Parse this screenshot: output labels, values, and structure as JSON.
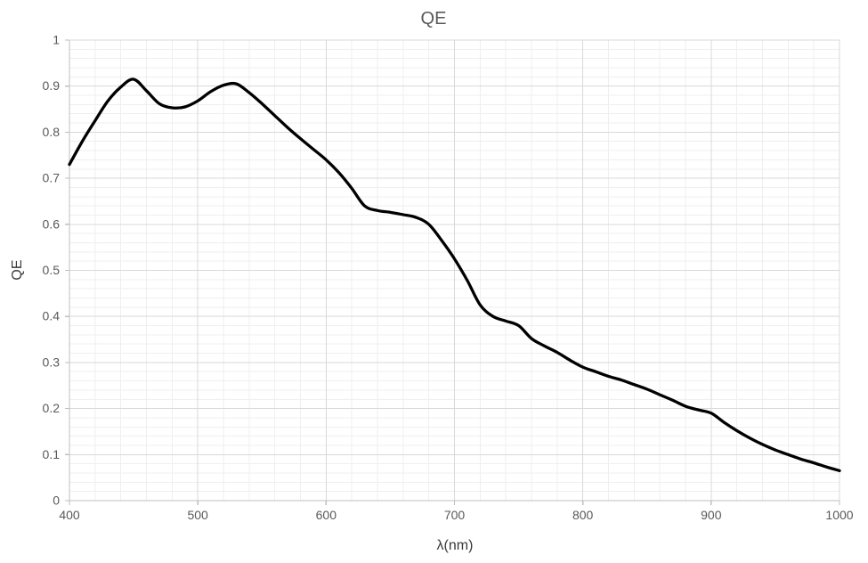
{
  "chart_data": {
    "type": "line",
    "title": "QE",
    "xlabel": "λ(nm)",
    "ylabel": "QE",
    "series_name": "QE",
    "legend": "none",
    "grid": "major+minor",
    "xlim": [
      400,
      1000
    ],
    "ylim": [
      0,
      1
    ],
    "x_ticks": [
      400,
      500,
      600,
      700,
      800,
      900,
      1000
    ],
    "y_ticks": [
      0,
      0.1,
      0.2,
      0.3,
      0.4,
      0.5,
      0.6,
      0.7,
      0.8,
      0.9,
      1
    ],
    "x_minor_step": 20,
    "y_minor_step": 0.02,
    "x": [
      400,
      410,
      420,
      430,
      440,
      450,
      460,
      470,
      480,
      490,
      500,
      510,
      520,
      530,
      540,
      550,
      560,
      570,
      580,
      590,
      600,
      610,
      620,
      630,
      640,
      650,
      660,
      670,
      680,
      690,
      700,
      710,
      720,
      730,
      740,
      750,
      760,
      770,
      780,
      790,
      800,
      810,
      820,
      830,
      840,
      850,
      860,
      870,
      880,
      890,
      900,
      910,
      920,
      930,
      940,
      950,
      960,
      970,
      980,
      990,
      1000
    ],
    "values": [
      0.73,
      0.78,
      0.825,
      0.868,
      0.898,
      0.915,
      0.89,
      0.862,
      0.853,
      0.855,
      0.868,
      0.888,
      0.902,
      0.905,
      0.886,
      0.862,
      0.836,
      0.81,
      0.786,
      0.763,
      0.74,
      0.712,
      0.678,
      0.64,
      0.63,
      0.626,
      0.621,
      0.615,
      0.6,
      0.565,
      0.525,
      0.478,
      0.425,
      0.4,
      0.39,
      0.38,
      0.352,
      0.336,
      0.322,
      0.305,
      0.29,
      0.28,
      0.27,
      0.262,
      0.252,
      0.242,
      0.23,
      0.218,
      0.205,
      0.197,
      0.19,
      0.17,
      0.152,
      0.136,
      0.122,
      0.11,
      0.1,
      0.09,
      0.082,
      0.073,
      0.065
    ]
  },
  "colors": {
    "line": "#000000",
    "grid_major": "#d9d9d9",
    "grid_minor": "#efefef",
    "axis": "#bfbfbf",
    "tick_text": "#595959",
    "title_text": "#595959",
    "axis_label_text": "#3a3a3a",
    "background": "#ffffff"
  },
  "line_width": 3.3
}
